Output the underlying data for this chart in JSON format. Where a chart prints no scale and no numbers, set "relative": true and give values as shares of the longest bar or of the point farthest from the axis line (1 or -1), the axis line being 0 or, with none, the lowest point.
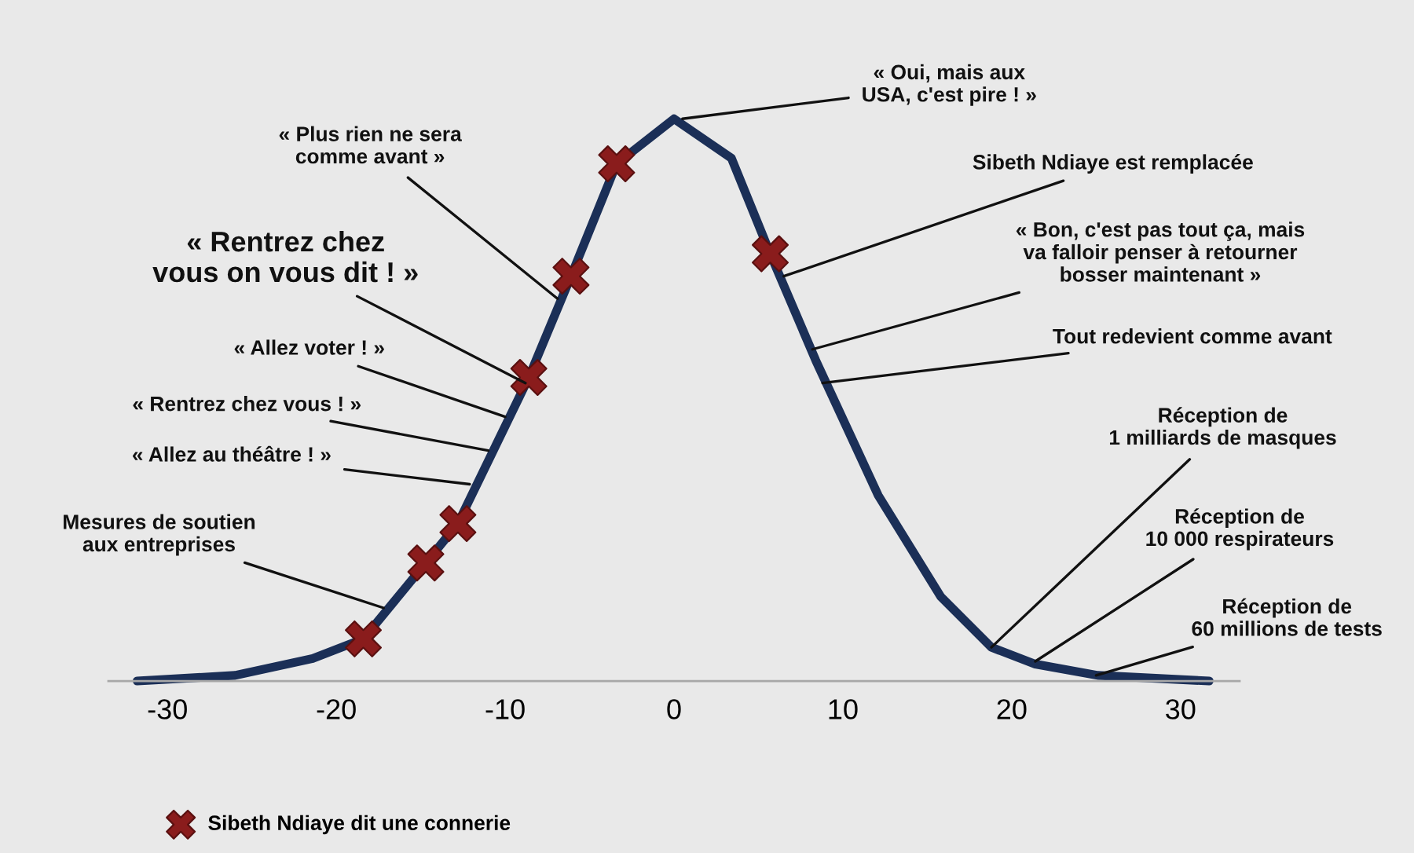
{
  "chart_data": {
    "type": "line",
    "relative": true,
    "xlim": [
      -33.5,
      33.5
    ],
    "xticks": [
      -30,
      -20,
      -10,
      0,
      10,
      20,
      30
    ],
    "grid": false,
    "legend": "bottom left",
    "tick_labels": "x",
    "series": [
      {
        "color": "#1b2f57",
        "marker": "none",
        "line_style": "solid",
        "x": [
          -31.8,
          -26,
          -21.4,
          -18.4,
          -14.7,
          -12.8,
          -8.6,
          -6.1,
          -3.4,
          0,
          3.4,
          5.7,
          8.4,
          12.1,
          15.8,
          18.8,
          21.4,
          25.1,
          31.7
        ],
        "values": [
          0,
          0.01,
          0.04,
          0.075,
          0.21,
          0.28,
          0.54,
          0.72,
          0.92,
          1.0,
          0.93,
          0.76,
          0.57,
          0.33,
          0.15,
          0.06,
          0.03,
          0.01,
          0
        ]
      },
      {
        "type": "scatter",
        "name": "Sibeth Ndiaye dit une connerie",
        "color": "#8a1c1c",
        "marker": "cross",
        "x": [
          -18.4,
          -14.7,
          -12.8,
          -8.6,
          -6.1,
          -3.4,
          5.7
        ],
        "values": [
          0.075,
          0.21,
          0.28,
          0.54,
          0.72,
          0.92,
          0.76
        ]
      }
    ],
    "annotations": [
      {
        "text": "Mesures de soutien\naux entreprises",
        "x": -17.2,
        "y": 0.13
      },
      {
        "text": "« Allez au théâtre ! »",
        "x": -12.1,
        "y": 0.35
      },
      {
        "text": "« Rentrez chez vous ! »",
        "x": -11,
        "y": 0.41
      },
      {
        "text": "« Allez voter ! »",
        "x": -10,
        "y": 0.47
      },
      {
        "text": "« Rentrez chez\nvous on vous dit ! »",
        "x": -8.8,
        "y": 0.53
      },
      {
        "text": "« Plus rien ne sera\ncomme avant »",
        "x": -6.9,
        "y": 0.68
      },
      {
        "text": "« Oui, mais aux\nUSA, c'est pire ! »",
        "x": 0.5,
        "y": 1.0
      },
      {
        "text": "Sibeth Ndiaye est remplacée",
        "x": 6.5,
        "y": 0.72
      },
      {
        "text": "« Bon, c'est pas tout ça, mais\nva falloir penser à retourner\nbosser maintenant »",
        "x": 8.2,
        "y": 0.59
      },
      {
        "text": "Tout redevient comme avant",
        "x": 8.8,
        "y": 0.53
      },
      {
        "text": "Réception de\n1 milliards de masques",
        "x": 18.8,
        "y": 0.06
      },
      {
        "text": "Réception de\n10 000 respirateurs",
        "x": 21.4,
        "y": 0.035
      },
      {
        "text": "Réception de\n60 millions de tests",
        "x": 25,
        "y": 0.01
      }
    ]
  }
}
